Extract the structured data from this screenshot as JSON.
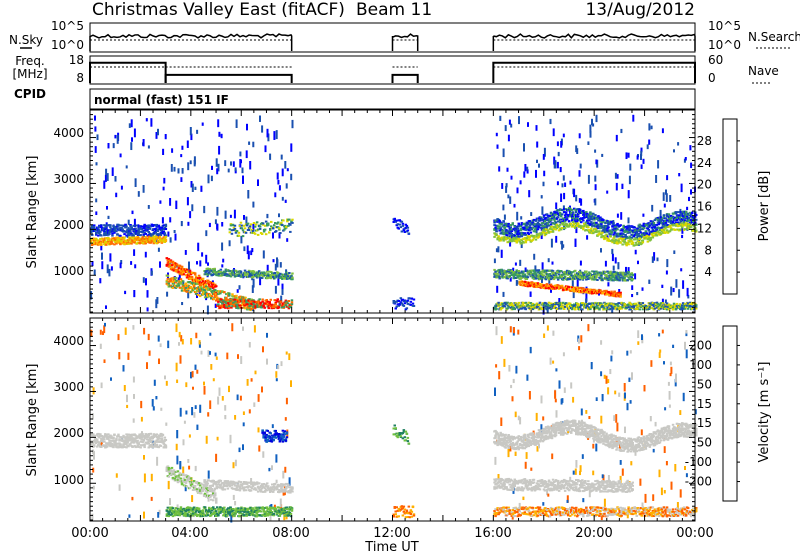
{
  "header": {
    "title": "Christmas Valley East (fitACF)",
    "beam": "Beam 11",
    "date": "13/Aug/2012"
  },
  "colors": {
    "frame": "#000000",
    "gray_scatter": "#c8c8c4"
  },
  "chart_data": [
    {
      "type": "line",
      "name": "noise-panel",
      "left_label": "N.Sky",
      "right_label": "N.Search",
      "yticks_left": [
        "10^5",
        "10^0"
      ],
      "yticks_right": [
        "10^5",
        "10^0"
      ],
      "segments_x": [
        [
          0.0,
          8.0
        ],
        [
          12.0,
          13.0
        ],
        [
          16.0,
          24.0
        ]
      ]
    },
    {
      "type": "line",
      "name": "frequency-panel",
      "left_label": "Freq.",
      "left_unit": "[MHz]",
      "right_label": "Nave",
      "yticks_left": [
        "18",
        "8"
      ],
      "yticks_right": [
        "60",
        "0"
      ],
      "segments": [
        {
          "x": [
            0.0,
            3.0
          ],
          "freq_level": 0.75
        },
        {
          "x": [
            3.0,
            8.0
          ],
          "freq_level": 0.3
        },
        {
          "x": [
            12.0,
            13.0
          ],
          "freq_level": 0.3
        },
        {
          "x": [
            16.0,
            24.0
          ],
          "freq_level": 0.75
        }
      ]
    },
    {
      "type": "table",
      "name": "cpid-bar",
      "label": "CPID",
      "mode_text": "normal (fast) 151 IF"
    },
    {
      "type": "heatmap",
      "name": "power-panel",
      "ylabel": "Slant Range [km]",
      "yticks": [
        "1000",
        "2000",
        "3000",
        "4000"
      ],
      "ylim": [
        200,
        4600
      ],
      "colorbar_label": "Power [dB]",
      "colorbar_ticks": [
        "28",
        "24",
        "20",
        "16",
        "12",
        "8",
        "4"
      ],
      "colorbar_colors": [
        "#ff0000",
        "#ff6a00",
        "#ffb000",
        "#d8d800",
        "#80c040",
        "#3a9a60",
        "#1a50b0",
        "#0000ff"
      ]
    },
    {
      "type": "heatmap",
      "name": "velocity-panel",
      "ylabel": "Slant Range [km]",
      "yticks": [
        "1000",
        "2000",
        "3000",
        "4000"
      ],
      "ylim": [
        200,
        4600
      ],
      "colorbar_label": "Velocity [m s⁻¹]",
      "colorbar_ticks": [
        "200",
        "100",
        "50",
        "15",
        "-15",
        "-50",
        "-100",
        "-200"
      ],
      "colorbar_colors": [
        "#0000e0",
        "#1060c0",
        "#208060",
        "#70c040",
        "#c8c8c4",
        "#ffb000",
        "#ff6000",
        "#ff2000",
        "#ff0000"
      ]
    }
  ],
  "xaxis": {
    "label": "Time UT",
    "ticks": [
      "00:00",
      "04:00",
      "08:00",
      "12:00",
      "16:00",
      "20:00",
      "00:00"
    ]
  }
}
